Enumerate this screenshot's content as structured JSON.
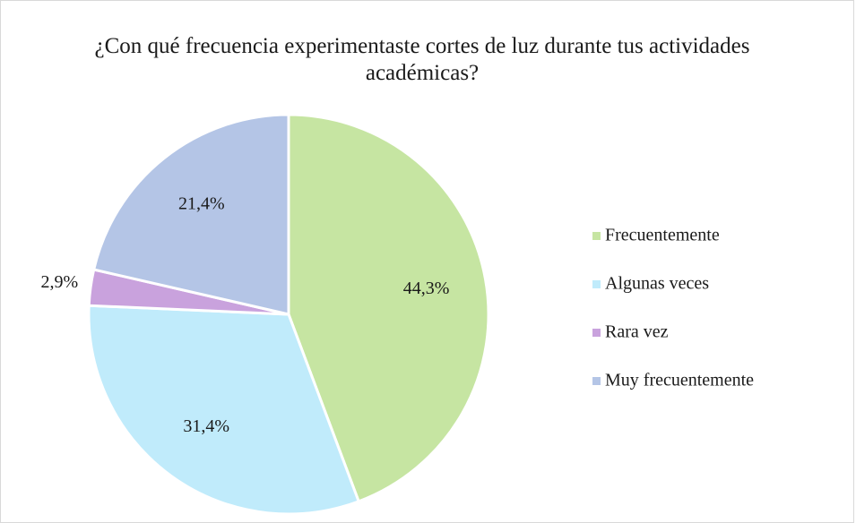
{
  "chart_data": {
    "type": "pie",
    "title": "¿Con qué frecuencia experimentaste cortes de luz durante tus actividades académicas?",
    "categories": [
      "Frecuentemente",
      "Algunas veces",
      "Rara vez",
      "Muy frecuentemente"
    ],
    "values": [
      44.3,
      31.4,
      2.9,
      21.4
    ],
    "value_labels": [
      "44,3%",
      "31,4%",
      "2,9%",
      "21,4%"
    ],
    "colors": [
      "#c6e5a2",
      "#c0ebfb",
      "#c9a2dd",
      "#b4c5e6"
    ],
    "legend": "right"
  }
}
